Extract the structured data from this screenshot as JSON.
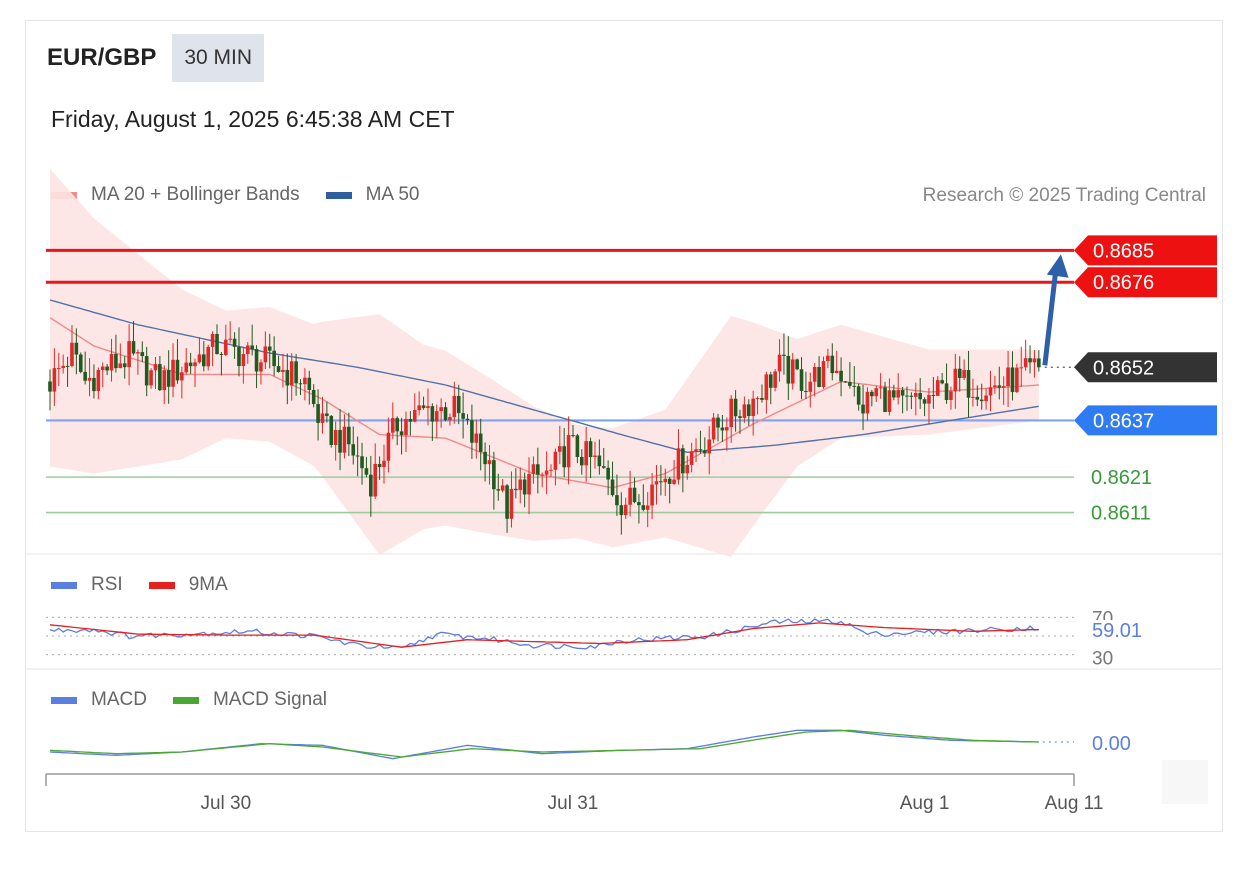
{
  "header": {
    "symbol": "EUR/GBP",
    "timeframe": "30 MIN",
    "datetime": "Friday, August 1, 2025 6:45:38 AM CET",
    "credit": "Research © 2025 Trading Central"
  },
  "legends": {
    "price": [
      {
        "label": "MA 20 + Bollinger Bands",
        "color": "#f28b8b"
      },
      {
        "label": "MA 50",
        "color": "#2f5e9e"
      }
    ],
    "rsi": [
      {
        "label": "RSI",
        "color": "#5b7fe0"
      },
      {
        "label": "9MA",
        "color": "#e62020"
      }
    ],
    "macd": [
      {
        "label": "MACD",
        "color": "#5b7fe0"
      },
      {
        "label": "MACD Signal",
        "color": "#4aa832"
      }
    ]
  },
  "chart_data": [
    {
      "type": "candlestick",
      "panel": "price",
      "title": "EUR/GBP",
      "ylim": [
        0.8601,
        0.8693
      ],
      "levels": [
        {
          "value": 0.8685,
          "label": "0.8685",
          "kind": "resistance",
          "color": "#e8161c"
        },
        {
          "value": 0.8676,
          "label": "0.8676",
          "kind": "resistance",
          "color": "#e8161c"
        },
        {
          "value": 0.8652,
          "label": "0.8652",
          "kind": "last-price",
          "color": "#333333"
        },
        {
          "value": 0.8637,
          "label": "0.8637",
          "kind": "pivot",
          "color": "#3a7af0"
        },
        {
          "value": 0.8621,
          "label": "0.8621",
          "kind": "support",
          "color": "#3a9a3a"
        },
        {
          "value": 0.8611,
          "label": "0.8611",
          "kind": "support",
          "color": "#3a9a3a"
        }
      ],
      "last_price": 0.8652,
      "target_arrow": {
        "from": 0.8652,
        "to": 0.8685,
        "color": "#2e5fa8"
      },
      "close_anchors": [
        [
          0,
          0.8648
        ],
        [
          5,
          0.8656
        ],
        [
          8,
          0.8648
        ],
        [
          13,
          0.8652
        ],
        [
          18,
          0.8655
        ],
        [
          25,
          0.8648
        ],
        [
          30,
          0.8652
        ],
        [
          38,
          0.8658
        ],
        [
          46,
          0.8655
        ],
        [
          52,
          0.8652
        ],
        [
          58,
          0.8648
        ],
        [
          62,
          0.8635
        ],
        [
          68,
          0.863
        ],
        [
          73,
          0.862
        ],
        [
          79,
          0.8636
        ],
        [
          86,
          0.864
        ],
        [
          92,
          0.864
        ],
        [
          96,
          0.8632
        ],
        [
          100,
          0.8625
        ],
        [
          104,
          0.8612
        ],
        [
          108,
          0.862
        ],
        [
          114,
          0.8622
        ],
        [
          118,
          0.863
        ],
        [
          124,
          0.8625
        ],
        [
          130,
          0.8614
        ],
        [
          134,
          0.8615
        ],
        [
          140,
          0.8622
        ],
        [
          148,
          0.863
        ],
        [
          154,
          0.8638
        ],
        [
          160,
          0.8643
        ],
        [
          166,
          0.8652
        ],
        [
          172,
          0.8648
        ],
        [
          178,
          0.8652
        ],
        [
          182,
          0.8649
        ],
        [
          184,
          0.864
        ],
        [
          188,
          0.8645
        ],
        [
          194,
          0.8641
        ],
        [
          200,
          0.8643
        ],
        [
          206,
          0.8648
        ],
        [
          214,
          0.8646
        ],
        [
          220,
          0.8649
        ],
        [
          225,
          0.8652
        ]
      ],
      "ma20_anchors": [
        [
          0,
          0.8666
        ],
        [
          10,
          0.8658
        ],
        [
          30,
          0.865
        ],
        [
          50,
          0.865
        ],
        [
          62,
          0.8643
        ],
        [
          75,
          0.8633
        ],
        [
          90,
          0.8632
        ],
        [
          110,
          0.8622
        ],
        [
          128,
          0.8618
        ],
        [
          140,
          0.8622
        ],
        [
          160,
          0.8636
        ],
        [
          180,
          0.8648
        ],
        [
          200,
          0.8645
        ],
        [
          225,
          0.8647
        ]
      ],
      "ma50_anchors": [
        [
          0,
          0.8671
        ],
        [
          20,
          0.8664
        ],
        [
          50,
          0.8656
        ],
        [
          70,
          0.8652
        ],
        [
          90,
          0.8647
        ],
        [
          110,
          0.864
        ],
        [
          130,
          0.8633
        ],
        [
          145,
          0.8628
        ],
        [
          165,
          0.863
        ],
        [
          185,
          0.8633
        ],
        [
          205,
          0.8637
        ],
        [
          225,
          0.8641
        ]
      ],
      "bollinger_width_anchors": [
        [
          0,
          0.0042
        ],
        [
          20,
          0.003
        ],
        [
          40,
          0.0018
        ],
        [
          60,
          0.002
        ],
        [
          75,
          0.0034
        ],
        [
          85,
          0.0026
        ],
        [
          100,
          0.0022
        ],
        [
          120,
          0.0016
        ],
        [
          140,
          0.0018
        ],
        [
          155,
          0.0034
        ],
        [
          170,
          0.0018
        ],
        [
          200,
          0.0012
        ],
        [
          225,
          0.001
        ]
      ]
    },
    {
      "type": "line",
      "panel": "rsi",
      "ylim": [
        20,
        80
      ],
      "reference_lines": [
        30,
        50,
        70
      ],
      "last_value_label": "59.01",
      "tick_labels": [
        "70",
        "30"
      ],
      "series": [
        {
          "name": "RSI",
          "color": "#5b7fe0",
          "anchors": [
            [
              0,
              56
            ],
            [
              10,
              57
            ],
            [
              18,
              50
            ],
            [
              30,
              52
            ],
            [
              45,
              55
            ],
            [
              60,
              50
            ],
            [
              70,
              40
            ],
            [
              80,
              36
            ],
            [
              88,
              52
            ],
            [
              100,
              47
            ],
            [
              110,
              40
            ],
            [
              124,
              39
            ],
            [
              130,
              45
            ],
            [
              150,
              50
            ],
            [
              165,
              65
            ],
            [
              180,
              66
            ],
            [
              186,
              52
            ],
            [
              200,
              54
            ],
            [
              215,
              57
            ],
            [
              225,
              59
            ]
          ]
        },
        {
          "name": "9MA",
          "color": "#e62020",
          "anchors": [
            [
              0,
              62
            ],
            [
              20,
              52
            ],
            [
              40,
              51
            ],
            [
              60,
              51
            ],
            [
              80,
              38
            ],
            [
              95,
              46
            ],
            [
              110,
              44
            ],
            [
              125,
              42
            ],
            [
              145,
              46
            ],
            [
              160,
              58
            ],
            [
              175,
              64
            ],
            [
              190,
              59
            ],
            [
              210,
              55
            ],
            [
              225,
              57
            ]
          ]
        }
      ]
    },
    {
      "type": "line",
      "panel": "macd",
      "ylim": [
        -0.0015,
        0.0015
      ],
      "last_value_label": "0.00",
      "series": [
        {
          "name": "MACD",
          "color": "#5b7fe0",
          "anchors": [
            [
              0,
              -0.0003
            ],
            [
              15,
              -0.0005
            ],
            [
              30,
              -0.0003
            ],
            [
              48,
              0.0002
            ],
            [
              62,
              0.0001
            ],
            [
              78,
              -0.0007
            ],
            [
              95,
              0.0001
            ],
            [
              112,
              -0.0004
            ],
            [
              130,
              -0.0002
            ],
            [
              145,
              -0.0001
            ],
            [
              160,
              0.0006
            ],
            [
              170,
              0.001
            ],
            [
              180,
              0.001
            ],
            [
              190,
              0.0007
            ],
            [
              205,
              0.0004
            ],
            [
              225,
              0.0003
            ]
          ]
        },
        {
          "name": "MACD Signal",
          "color": "#4aa832",
          "anchors": [
            [
              0,
              -0.0002
            ],
            [
              15,
              -0.0004
            ],
            [
              30,
              -0.0003
            ],
            [
              50,
              0.0002
            ],
            [
              62,
              0.0
            ],
            [
              80,
              -0.0006
            ],
            [
              96,
              -0.0001
            ],
            [
              112,
              -0.0003
            ],
            [
              130,
              -0.0002
            ],
            [
              148,
              -0.0001
            ],
            [
              162,
              0.0005
            ],
            [
              172,
              0.0009
            ],
            [
              182,
              0.001
            ],
            [
              195,
              0.0007
            ],
            [
              210,
              0.0004
            ],
            [
              225,
              0.0003
            ]
          ]
        }
      ]
    }
  ],
  "x_axis": {
    "tick_labels": [
      {
        "label": "Jul 30",
        "bar": 40
      },
      {
        "label": "Jul 31",
        "bar": 119
      },
      {
        "label": "Aug 1",
        "bar": 199
      },
      {
        "label": "Aug 11",
        "bar": 233
      }
    ],
    "total_slots": 233,
    "bars_shown": 226
  }
}
